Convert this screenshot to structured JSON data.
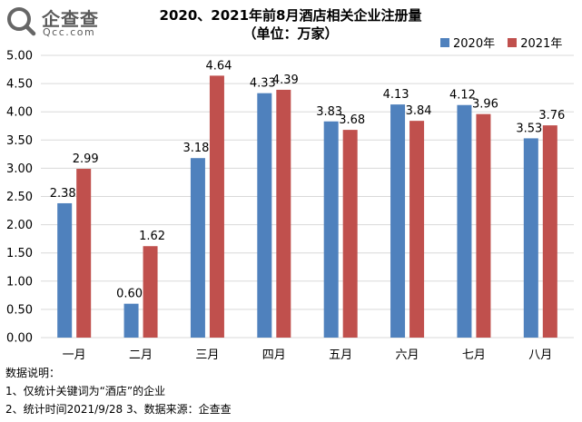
{
  "brand": {
    "name_cn": "企查查",
    "name_en": "Qcc.com"
  },
  "title": "2020、2021年前8月酒店相关企业注册量",
  "subtitle": "（单位：万家）",
  "notes": [
    "数据说明：",
    "1、仅统计关键词为“酒店”的企业",
    "2、统计时间2021/9/28   3、数据来源：企查查"
  ],
  "chart_data": {
    "type": "bar",
    "title": "2020、2021年前8月酒店相关企业注册量",
    "subtitle": "（单位：万家）",
    "categories": [
      "一月",
      "二月",
      "三月",
      "四月",
      "五月",
      "六月",
      "七月",
      "八月"
    ],
    "series": [
      {
        "name": "2020年",
        "color": "#4f81bd",
        "values": [
          2.38,
          0.6,
          3.18,
          4.33,
          3.83,
          4.13,
          4.12,
          3.53
        ]
      },
      {
        "name": "2021年",
        "color": "#c0504d",
        "values": [
          2.99,
          1.62,
          4.64,
          4.39,
          3.68,
          3.84,
          3.96,
          3.76
        ]
      }
    ],
    "ylim": [
      0,
      5
    ],
    "yticks": [
      "0.00",
      "0.50",
      "1.00",
      "1.50",
      "2.00",
      "2.50",
      "3.00",
      "3.50",
      "4.00",
      "4.50",
      "5.00"
    ],
    "grid": true,
    "legend": "top-right",
    "data_labels": true
  }
}
